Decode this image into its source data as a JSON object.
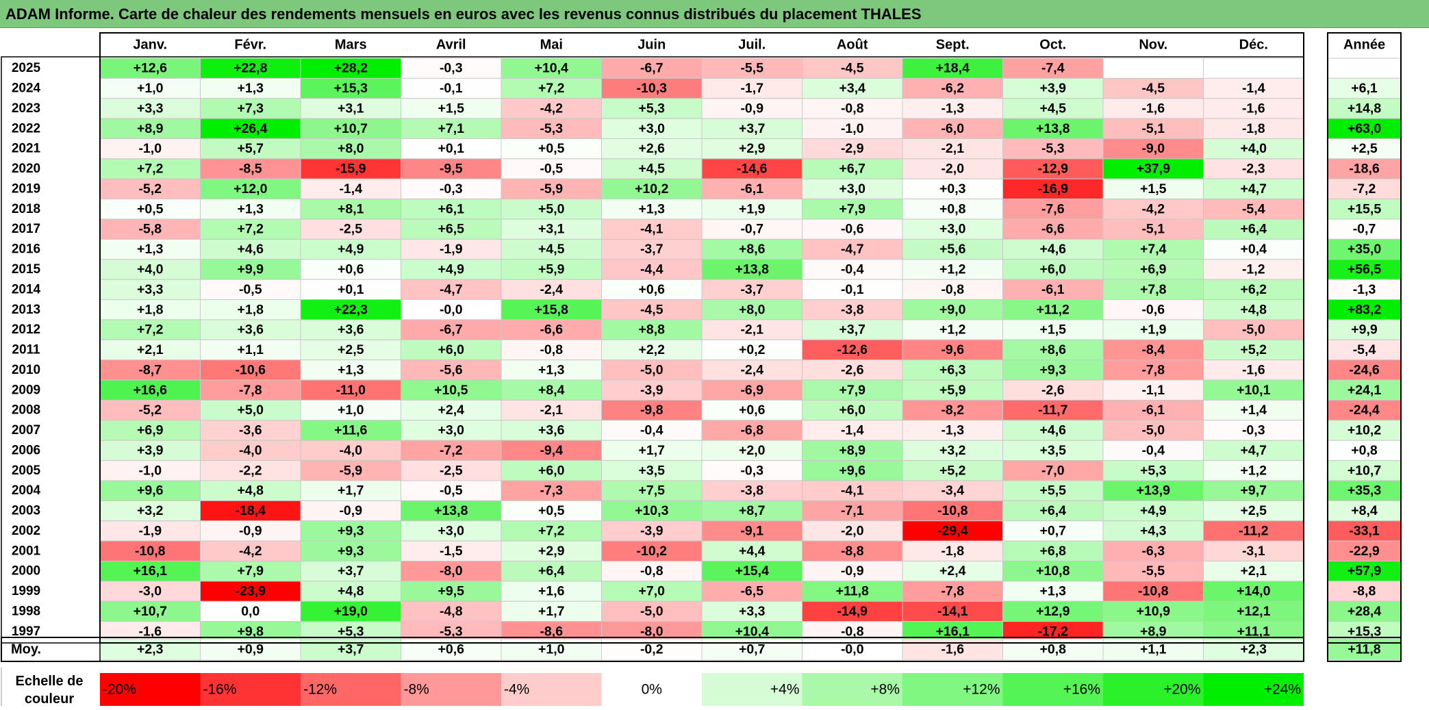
{
  "title": "ADAM Informe. Carte de chaleur des rendements mensuels en euros avec les revenus connus distribués du placement THALES",
  "chart_data": {
    "type": "heatmap",
    "columns": [
      "Janv.",
      "Févr.",
      "Mars",
      "Avril",
      "Mai",
      "Juin",
      "Juil.",
      "Août",
      "Sept.",
      "Oct.",
      "Nov.",
      "Déc."
    ],
    "year_column_label": "Année",
    "rows": [
      {
        "year": "2025",
        "values": [
          "+12,6",
          "+22,8",
          "+28,2",
          "-0,3",
          "+10,4",
          "-6,7",
          "-5,5",
          "-4,5",
          "+18,4",
          "-7,4",
          "",
          ""
        ],
        "annual": ""
      },
      {
        "year": "2024",
        "values": [
          "+1,0",
          "+1,3",
          "+15,3",
          "-0,1",
          "+7,2",
          "-10,3",
          "-1,7",
          "+3,4",
          "-6,2",
          "+3,9",
          "-4,5",
          "-1,4"
        ],
        "annual": "+6,1"
      },
      {
        "year": "2023",
        "values": [
          "+3,3",
          "+7,3",
          "+3,1",
          "+1,5",
          "-4,2",
          "+5,3",
          "-0,9",
          "-0,8",
          "-1,3",
          "+4,5",
          "-1,6",
          "-1,6"
        ],
        "annual": "+14,8"
      },
      {
        "year": "2022",
        "values": [
          "+8,9",
          "+26,4",
          "+10,7",
          "+7,1",
          "-5,3",
          "+3,0",
          "+3,7",
          "-1,0",
          "-6,0",
          "+13,8",
          "-5,1",
          "-1,8"
        ],
        "annual": "+63,0"
      },
      {
        "year": "2021",
        "values": [
          "-1,0",
          "+5,7",
          "+8,0",
          "+0,1",
          "+0,5",
          "+2,6",
          "+2,9",
          "-2,9",
          "-2,1",
          "-5,3",
          "-9,0",
          "+4,0"
        ],
        "annual": "+2,5"
      },
      {
        "year": "2020",
        "values": [
          "+7,2",
          "-8,5",
          "-15,9",
          "-9,5",
          "-0,5",
          "+4,5",
          "-14,6",
          "+6,7",
          "-2,0",
          "-12,9",
          "+37,9",
          "-2,3"
        ],
        "annual": "-18,6"
      },
      {
        "year": "2019",
        "values": [
          "-5,2",
          "+12,0",
          "-1,4",
          "-0,3",
          "-5,9",
          "+10,2",
          "-6,1",
          "+3,0",
          "+0,3",
          "-16,9",
          "+1,5",
          "+4,7"
        ],
        "annual": "-7,2"
      },
      {
        "year": "2018",
        "values": [
          "+0,5",
          "+1,3",
          "+8,1",
          "+6,1",
          "+5,0",
          "+1,3",
          "+1,9",
          "+7,9",
          "+0,8",
          "-7,6",
          "-4,2",
          "-5,4"
        ],
        "annual": "+15,5"
      },
      {
        "year": "2017",
        "values": [
          "-5,8",
          "+7,2",
          "-2,5",
          "+6,5",
          "+3,1",
          "-4,1",
          "-0,7",
          "-0,6",
          "+3,0",
          "-6,6",
          "-5,1",
          "+6,4"
        ],
        "annual": "-0,7"
      },
      {
        "year": "2016",
        "values": [
          "+1,3",
          "+4,6",
          "+4,9",
          "-1,9",
          "+4,5",
          "-3,7",
          "+8,6",
          "-4,7",
          "+5,6",
          "+4,6",
          "+7,4",
          "+0,4"
        ],
        "annual": "+35,0"
      },
      {
        "year": "2015",
        "values": [
          "+4,0",
          "+9,9",
          "+0,6",
          "+4,9",
          "+5,9",
          "-4,4",
          "+13,8",
          "-0,4",
          "+1,2",
          "+6,0",
          "+6,9",
          "-1,2"
        ],
        "annual": "+56,5"
      },
      {
        "year": "2014",
        "values": [
          "+3,3",
          "-0,5",
          "+0,1",
          "-4,7",
          "-2,4",
          "+0,6",
          "-3,7",
          "-0,1",
          "-0,8",
          "-6,1",
          "+7,8",
          "+6,2"
        ],
        "annual": "-1,3"
      },
      {
        "year": "2013",
        "values": [
          "+1,8",
          "+1,8",
          "+22,3",
          "-0,0",
          "+15,8",
          "-4,5",
          "+8,0",
          "-3,8",
          "+9,0",
          "+11,2",
          "-0,6",
          "+4,8"
        ],
        "annual": "+83,2"
      },
      {
        "year": "2012",
        "values": [
          "+7,2",
          "+3,6",
          "+3,6",
          "-6,7",
          "-6,6",
          "+8,8",
          "-2,1",
          "+3,7",
          "+1,2",
          "+1,5",
          "+1,9",
          "-5,0"
        ],
        "annual": "+9,9"
      },
      {
        "year": "2011",
        "values": [
          "+2,1",
          "+1,1",
          "+2,5",
          "+6,0",
          "-0,8",
          "+2,2",
          "+0,2",
          "-12,6",
          "-9,6",
          "+8,6",
          "-8,4",
          "+5,2"
        ],
        "annual": "-5,4"
      },
      {
        "year": "2010",
        "values": [
          "-8,7",
          "-10,6",
          "+1,3",
          "-5,6",
          "+1,3",
          "-5,0",
          "-2,4",
          "-2,6",
          "+6,3",
          "+9,3",
          "-7,8",
          "-1,6"
        ],
        "annual": "-24,6"
      },
      {
        "year": "2009",
        "values": [
          "+16,6",
          "-7,8",
          "-11,0",
          "+10,5",
          "+8,4",
          "-3,9",
          "-6,9",
          "+7,9",
          "+5,9",
          "-2,6",
          "-1,1",
          "+10,1"
        ],
        "annual": "+24,1"
      },
      {
        "year": "2008",
        "values": [
          "-5,2",
          "+5,0",
          "+1,0",
          "+2,4",
          "-2,1",
          "-9,8",
          "+0,6",
          "+6,0",
          "-8,2",
          "-11,7",
          "-6,1",
          "+1,4"
        ],
        "annual": "-24,4"
      },
      {
        "year": "2007",
        "values": [
          "+6,9",
          "-3,6",
          "+11,6",
          "+3,0",
          "+3,6",
          "-0,4",
          "-6,8",
          "-1,4",
          "-1,3",
          "+4,6",
          "-5,0",
          "-0,3"
        ],
        "annual": "+10,2"
      },
      {
        "year": "2006",
        "values": [
          "+3,9",
          "-4,0",
          "-4,0",
          "-7,2",
          "-9,4",
          "+1,7",
          "+2,0",
          "+8,9",
          "+3,2",
          "+3,5",
          "-0,4",
          "+4,7"
        ],
        "annual": "+0,8"
      },
      {
        "year": "2005",
        "values": [
          "-1,0",
          "-2,2",
          "-5,9",
          "-2,5",
          "+6,0",
          "+3,5",
          "-0,3",
          "+9,6",
          "+5,2",
          "-7,0",
          "+5,3",
          "+1,2"
        ],
        "annual": "+10,7"
      },
      {
        "year": "2004",
        "values": [
          "+9,6",
          "+4,8",
          "+1,7",
          "-0,5",
          "-7,3",
          "+7,5",
          "-3,8",
          "-4,1",
          "-3,4",
          "+5,5",
          "+13,9",
          "+9,7"
        ],
        "annual": "+35,3"
      },
      {
        "year": "2003",
        "values": [
          "+3,2",
          "-18,4",
          "-0,9",
          "+13,8",
          "+0,5",
          "+10,3",
          "+8,7",
          "-7,1",
          "-10,8",
          "+6,4",
          "+4,9",
          "+2,5"
        ],
        "annual": "+8,4"
      },
      {
        "year": "2002",
        "values": [
          "-1,9",
          "-0,9",
          "+9,3",
          "+3,0",
          "+7,2",
          "-3,9",
          "-9,1",
          "-2,0",
          "-29,4",
          "+0,7",
          "+4,3",
          "-11,2"
        ],
        "annual": "-33,1"
      },
      {
        "year": "2001",
        "values": [
          "-10,8",
          "-4,2",
          "+9,3",
          "-1,5",
          "+2,9",
          "-10,2",
          "+4,4",
          "-8,8",
          "-1,8",
          "+6,8",
          "-6,3",
          "-3,1"
        ],
        "annual": "-22,9"
      },
      {
        "year": "2000",
        "values": [
          "+16,1",
          "+7,9",
          "+3,7",
          "-8,0",
          "+6,4",
          "-0,8",
          "+15,4",
          "-0,9",
          "+2,4",
          "+10,8",
          "-5,5",
          "+2,1"
        ],
        "annual": "+57,9"
      },
      {
        "year": "1999",
        "values": [
          "-3,0",
          "-23,9",
          "+4,8",
          "+9,5",
          "+1,6",
          "+7,0",
          "-6,5",
          "+11,8",
          "-7,8",
          "+1,3",
          "-10,8",
          "+14,0"
        ],
        "annual": "-8,8"
      },
      {
        "year": "1998",
        "values": [
          "+10,7",
          "0,0",
          "+19,0",
          "-4,8",
          "+1,7",
          "-5,0",
          "+3,3",
          "-14,9",
          "-14,1",
          "+12,9",
          "+10,9",
          "+12,1"
        ],
        "annual": "+28,4"
      },
      {
        "year": "1997",
        "values": [
          "-1,6",
          "+9,8",
          "+5,3",
          "-5,3",
          "-8,6",
          "-8,0",
          "+10,4",
          "-0,8",
          "+16,1",
          "-17,2",
          "+8,9",
          "+11,1"
        ],
        "annual": "+15,3"
      }
    ],
    "average": {
      "label": "Moy.",
      "values": [
        "+2,3",
        "+0,9",
        "+3,7",
        "+0,6",
        "+1,0",
        "-0,2",
        "+0,7",
        "-0,0",
        "-1,6",
        "+0,8",
        "+1,1",
        "+2,3"
      ],
      "annual": "+11,8"
    },
    "scale": {
      "label_line1": "Echelle de",
      "label_line2": "couleur",
      "steps": [
        "-20%",
        "-16%",
        "-12%",
        "-8%",
        "-4%",
        "0%",
        "+4%",
        "+8%",
        "+12%",
        "+16%",
        "+20%",
        "+24%"
      ]
    },
    "colors": {
      "negative_max": "#ff0000",
      "positive_max": "#00ee00",
      "neutral": "#ffffff",
      "title_bg": "#7ec87e"
    }
  }
}
